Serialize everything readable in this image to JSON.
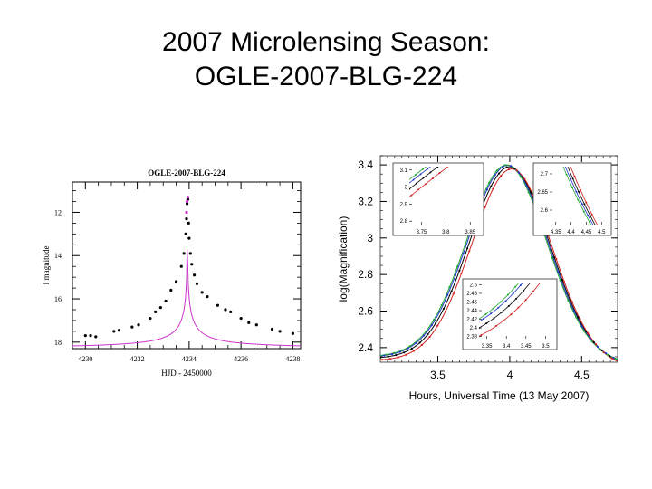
{
  "slide": {
    "title_line1": "2007 Microlensing Season:",
    "title_line2": "OGLE-2007-BLG-224"
  },
  "chart_data": [
    {
      "type": "scatter",
      "title": "OGLE-2007-BLG-224",
      "xlabel": "HJD - 2450000",
      "ylabel": "I magnitude",
      "xlim": [
        4229.5,
        4238.3
      ],
      "ylim": [
        18.3,
        10.6
      ],
      "y_inverted": true,
      "x_ticks": [
        4230,
        4232,
        4234,
        4236,
        4238
      ],
      "x_tick_labels": [
        "4230",
        "4232",
        "4234",
        "4236",
        "4238"
      ],
      "y_ticks": [
        12,
        14,
        16,
        18
      ],
      "y_tick_labels": [
        "12",
        "14",
        "16",
        "18"
      ],
      "model": {
        "name": "fit",
        "color": "#cc33cc",
        "t0": 4233.93,
        "baseline_mag": 18.3,
        "peak_mag": 11.3
      },
      "points": {
        "color": "#000000",
        "x": [
          4230.0,
          4230.2,
          4230.4,
          4231.1,
          4231.3,
          4231.8,
          4232.05,
          4232.5,
          4232.7,
          4232.9,
          4233.1,
          4233.3,
          4233.5,
          4233.7,
          4233.8,
          4233.87,
          4233.9,
          4233.92,
          4233.95,
          4233.98,
          4234.0,
          4234.05,
          4234.1,
          4234.2,
          4234.3,
          4234.5,
          4234.7,
          4235.1,
          4235.4,
          4235.6,
          4236.0,
          4236.3,
          4236.6,
          4237.2,
          4237.5,
          4238.0
        ],
        "y": [
          17.7,
          17.7,
          17.75,
          17.5,
          17.45,
          17.3,
          17.2,
          16.9,
          16.6,
          16.4,
          16.1,
          15.6,
          15.2,
          14.5,
          13.9,
          13.0,
          12.3,
          11.6,
          11.4,
          12.5,
          13.2,
          13.9,
          14.4,
          14.9,
          15.3,
          15.7,
          15.9,
          16.3,
          16.5,
          16.6,
          16.9,
          17.1,
          17.2,
          17.4,
          17.5,
          17.6
        ]
      },
      "peak_points": {
        "color": "#cc33cc",
        "x": [
          4233.9,
          4233.92,
          4233.95
        ],
        "y": [
          12.0,
          11.5,
          11.3
        ]
      }
    },
    {
      "type": "line",
      "title": "",
      "xlabel": "Hours, Universal Time (13 May 2007)",
      "ylabel": "log(Magnification)",
      "xlim": [
        3.1,
        4.75
      ],
      "ylim": [
        2.32,
        3.45
      ],
      "x_ticks": [
        3.5,
        4,
        4.5
      ],
      "x_tick_labels": [
        "3.5",
        "4",
        "4.5"
      ],
      "y_ticks": [
        2.4,
        2.6,
        2.8,
        3.0,
        3.2,
        3.4
      ],
      "y_tick_labels": [
        "2.4",
        "2.6",
        "2.8",
        "3",
        "3.2",
        "3.4"
      ],
      "peak": {
        "x": 4.0,
        "y": 3.39,
        "width": 0.28
      },
      "series": [
        {
          "name": "model-black",
          "color": "#000000",
          "shift": 0.0,
          "offset": 0.0
        },
        {
          "name": "model-red",
          "color": "#d22020",
          "shift": 0.015,
          "offset": -0.012
        },
        {
          "name": "model-blue",
          "color": "#2233cc",
          "shift": -0.012,
          "offset": 0.008
        },
        {
          "name": "model-green",
          "color": "#22aa33",
          "shift": -0.02,
          "offset": 0.01
        }
      ],
      "insets": [
        {
          "name": "inset-top-left",
          "xlim": [
            3.725,
            3.87
          ],
          "ylim": [
            2.78,
            3.12
          ],
          "x_tick_labels": [
            "3.75",
            "3.8",
            "3.85"
          ],
          "x_ticks": [
            3.75,
            3.8,
            3.85
          ],
          "y_tick_labels": [
            "2.8",
            "2.9",
            "3",
            "3.1"
          ],
          "y_ticks": [
            2.8,
            2.9,
            3.0,
            3.1
          ]
        },
        {
          "name": "inset-top-right",
          "xlim": [
            4.33,
            4.52
          ],
          "ylim": [
            2.56,
            2.72
          ],
          "x_tick_labels": [
            "4.35",
            "4.4",
            "4.45",
            "4.5"
          ],
          "x_ticks": [
            4.35,
            4.4,
            4.45,
            4.5
          ],
          "y_tick_labels": [
            "2.6",
            "2.65",
            "2.7"
          ],
          "y_ticks": [
            2.6,
            2.65,
            2.7
          ]
        },
        {
          "name": "inset-bottom",
          "xlim": [
            3.33,
            3.52
          ],
          "ylim": [
            2.375,
            2.505
          ],
          "x_tick_labels": [
            "3.35",
            "3.4",
            "3.45",
            "3.5"
          ],
          "x_ticks": [
            3.35,
            3.4,
            3.45,
            3.5
          ],
          "y_tick_labels": [
            "2.38",
            "2.4",
            "2.42",
            "2.44",
            "2.46",
            "2.48",
            "2.5"
          ],
          "y_ticks": [
            2.38,
            2.4,
            2.42,
            2.44,
            2.46,
            2.48,
            2.5
          ]
        }
      ]
    }
  ]
}
